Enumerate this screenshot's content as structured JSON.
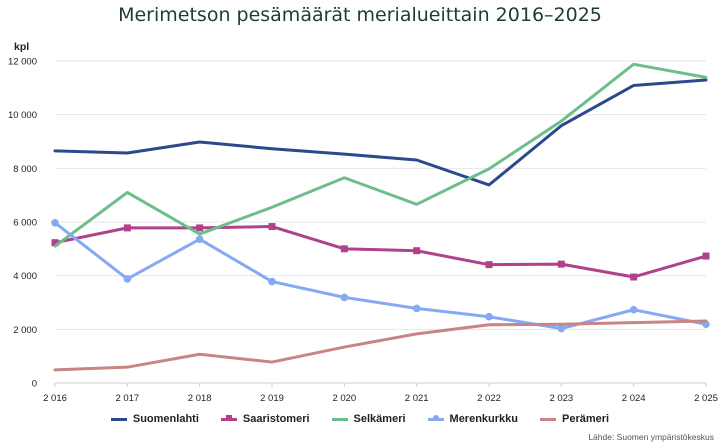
{
  "chart_data": {
    "type": "line",
    "title": "Merimetson pesämäärät merialueittain 2016–2025",
    "ylabel": "kpl",
    "xlabel": "",
    "ylim": [
      0,
      12000
    ],
    "y_ticks": [
      "0",
      "2 000",
      "4 000",
      "6 000",
      "8 000",
      "10 000",
      "12 000"
    ],
    "categories": [
      "2 016",
      "2 017",
      "2 018",
      "2 019",
      "2 020",
      "2 021",
      "2 022",
      "2 023",
      "2 024",
      "2 025"
    ],
    "grid": "horizontal",
    "legend_position": "bottom",
    "series": [
      {
        "name": "Suomenlahti",
        "color": "#2b4a8c",
        "marker": "none",
        "values": [
          8650,
          8570,
          8980,
          8730,
          8530,
          8310,
          7380,
          9590,
          11090,
          11290
        ]
      },
      {
        "name": "Saaristomeri",
        "color": "#b0418b",
        "marker": "square",
        "values": [
          5230,
          5780,
          5780,
          5830,
          5000,
          4930,
          4410,
          4430,
          3950,
          4730
        ]
      },
      {
        "name": "Selkämeri",
        "color": "#6cbf8a",
        "marker": "none",
        "values": [
          5100,
          7100,
          5550,
          6550,
          7650,
          6660,
          7980,
          9760,
          11880,
          11390
        ]
      },
      {
        "name": "Merenkurkku",
        "color": "#86a9f4",
        "marker": "circle",
        "values": [
          5970,
          3880,
          5360,
          3780,
          3190,
          2780,
          2470,
          2030,
          2730,
          2190
        ]
      },
      {
        "name": "Perämeri",
        "color": "#c98486",
        "marker": "none",
        "values": [
          490,
          590,
          1070,
          780,
          1340,
          1830,
          2170,
          2190,
          2250,
          2310
        ]
      }
    ]
  },
  "source": "Lähde: Suomen ympäristökeskus"
}
